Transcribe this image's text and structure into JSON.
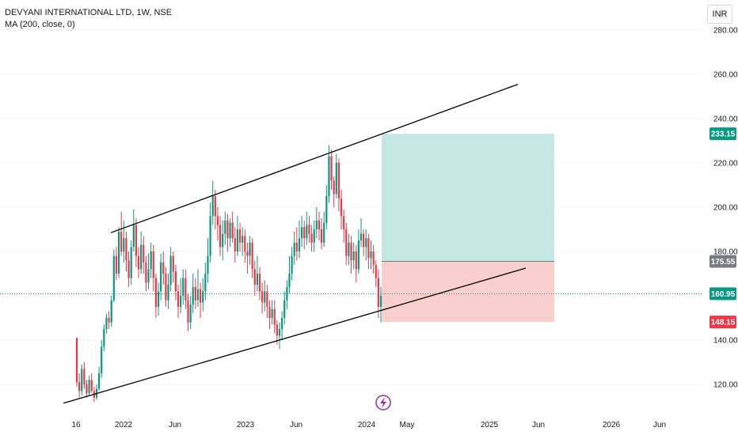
{
  "header": {
    "symbol_line": "DEVYANI INTERNATIONAL LTD, 1W, NSE",
    "indicator_line": "MA (200, close, 0)",
    "currency": "INR"
  },
  "colors": {
    "up": "#089981",
    "down": "#f23645",
    "target_zone": "#b2dfdb",
    "stop_zone": "#f8c7c5",
    "target_label": "#089981",
    "entry_label": "#787b86",
    "last_price_label": "#089981",
    "stop_label": "#f23645",
    "trendline": "#000000",
    "event_icon": "#9c27b0"
  },
  "event_icon": "lightning-icon",
  "chart_data": {
    "type": "candlestick",
    "y_ticks": [
      "280.00",
      "260.00",
      "240.00",
      "220.00",
      "200.00",
      "180.00",
      "140.00",
      "120.00"
    ],
    "x_ticks": [
      "16",
      "2022",
      "Jun",
      "2023",
      "Jun",
      "2024",
      "May",
      "2025",
      "Jun",
      "2026",
      "Jun"
    ],
    "ylim": [
      114,
      284
    ],
    "price_labels": [
      {
        "name": "target",
        "value": "233.15"
      },
      {
        "name": "entry",
        "value": "175.55"
      },
      {
        "name": "last-price",
        "value": "160.95"
      },
      {
        "name": "stop",
        "value": "148.15"
      }
    ],
    "long_position": {
      "entry": 175.55,
      "target": 233.15,
      "stop": 148.15
    },
    "channel": {
      "upper": [
        [
          188.5,
          1
        ],
        [
          255,
          0
        ]
      ],
      "lower": [
        [
          110,
          0
        ],
        [
          172,
          0
        ]
      ]
    },
    "candles": [
      [
        141,
        121,
        141,
        119
      ],
      [
        121,
        117,
        125,
        114
      ],
      [
        117,
        127,
        129,
        115
      ],
      [
        127,
        120,
        130,
        118
      ],
      [
        120,
        116,
        122,
        114
      ],
      [
        116,
        122,
        124,
        115
      ],
      [
        122,
        117,
        125,
        116
      ],
      [
        117,
        114,
        119,
        112
      ],
      [
        114,
        118,
        120,
        113
      ],
      [
        118,
        125,
        128,
        117
      ],
      [
        125,
        137,
        140,
        123
      ],
      [
        137,
        145,
        147,
        135
      ],
      [
        145,
        150,
        152,
        143
      ],
      [
        150,
        148,
        153,
        145
      ],
      [
        148,
        158,
        160,
        146
      ],
      [
        158,
        178,
        181,
        157
      ],
      [
        178,
        170,
        182,
        167
      ],
      [
        170,
        189,
        191,
        168
      ],
      [
        189,
        180,
        198,
        178
      ],
      [
        180,
        186,
        194,
        175
      ],
      [
        186,
        176,
        189,
        171
      ],
      [
        176,
        168,
        180,
        164
      ],
      [
        168,
        182,
        185,
        165
      ],
      [
        182,
        192,
        199,
        180
      ],
      [
        192,
        178,
        195,
        173
      ],
      [
        178,
        172,
        182,
        168
      ],
      [
        172,
        183,
        189,
        170
      ],
      [
        183,
        175,
        187,
        170
      ],
      [
        175,
        166,
        178,
        162
      ],
      [
        166,
        172,
        179,
        163
      ],
      [
        172,
        180,
        184,
        168
      ],
      [
        180,
        168,
        183,
        162
      ],
      [
        168,
        155,
        170,
        150
      ],
      [
        155,
        162,
        166,
        151
      ],
      [
        162,
        175,
        179,
        158
      ],
      [
        175,
        170,
        180,
        165
      ],
      [
        170,
        158,
        173,
        155
      ],
      [
        158,
        165,
        170,
        154
      ],
      [
        165,
        178,
        182,
        162
      ],
      [
        178,
        171,
        180,
        166
      ],
      [
        171,
        162,
        174,
        158
      ],
      [
        162,
        155,
        165,
        150
      ],
      [
        155,
        160,
        168,
        152
      ],
      [
        160,
        168,
        172,
        156
      ],
      [
        168,
        158,
        172,
        154
      ],
      [
        158,
        148,
        161,
        144
      ],
      [
        148,
        156,
        160,
        145
      ],
      [
        156,
        164,
        170,
        152
      ],
      [
        164,
        158,
        168,
        154
      ],
      [
        158,
        163,
        172,
        155
      ],
      [
        163,
        157,
        166,
        150
      ],
      [
        157,
        162,
        168,
        153
      ],
      [
        162,
        170,
        175,
        158
      ],
      [
        170,
        178,
        186,
        166
      ],
      [
        178,
        196,
        202,
        175
      ],
      [
        196,
        205,
        212,
        192
      ],
      [
        205,
        196,
        208,
        190
      ],
      [
        196,
        192,
        200,
        185
      ],
      [
        192,
        182,
        196,
        178
      ],
      [
        182,
        188,
        194,
        176
      ],
      [
        188,
        194,
        198,
        183
      ],
      [
        194,
        186,
        197,
        180
      ],
      [
        186,
        193,
        195,
        182
      ],
      [
        193,
        186,
        198,
        184
      ],
      [
        186,
        180,
        191,
        175
      ],
      [
        180,
        190,
        196,
        178
      ],
      [
        190,
        184,
        193,
        180
      ],
      [
        184,
        187,
        191,
        178
      ],
      [
        187,
        180,
        190,
        175
      ],
      [
        180,
        178,
        184,
        170
      ],
      [
        178,
        184,
        187,
        174
      ],
      [
        184,
        172,
        186,
        168
      ],
      [
        172,
        165,
        176,
        160
      ],
      [
        165,
        170,
        178,
        162
      ],
      [
        170,
        162,
        173,
        158
      ],
      [
        162,
        157,
        166,
        152
      ],
      [
        157,
        162,
        167,
        153
      ],
      [
        162,
        155,
        165,
        150
      ],
      [
        155,
        150,
        158,
        145
      ],
      [
        150,
        154,
        158,
        147
      ],
      [
        154,
        147,
        158,
        143
      ],
      [
        147,
        142,
        149,
        138
      ],
      [
        142,
        145,
        148,
        136
      ],
      [
        145,
        150,
        153,
        140
      ],
      [
        150,
        158,
        162,
        147
      ],
      [
        158,
        164,
        167,
        154
      ],
      [
        164,
        170,
        178,
        161
      ],
      [
        170,
        178,
        182,
        167
      ],
      [
        178,
        184,
        189,
        174
      ],
      [
        184,
        180,
        191,
        176
      ],
      [
        180,
        186,
        194,
        177
      ],
      [
        186,
        191,
        196,
        182
      ],
      [
        191,
        186,
        194,
        181
      ],
      [
        186,
        192,
        198,
        183
      ],
      [
        192,
        188,
        196,
        184
      ],
      [
        188,
        184,
        192,
        180
      ],
      [
        184,
        190,
        194,
        180
      ],
      [
        190,
        194,
        200,
        186
      ],
      [
        194,
        190,
        198,
        185
      ],
      [
        190,
        184,
        195,
        181
      ],
      [
        184,
        193,
        198,
        182
      ],
      [
        193,
        205,
        210,
        190
      ],
      [
        205,
        223,
        228,
        202
      ],
      [
        223,
        212,
        226,
        208
      ],
      [
        212,
        206,
        214,
        200
      ],
      [
        206,
        220,
        224,
        204
      ],
      [
        220,
        204,
        222,
        198
      ],
      [
        204,
        196,
        208,
        190
      ],
      [
        196,
        190,
        199,
        184
      ],
      [
        190,
        178,
        193,
        174
      ],
      [
        178,
        184,
        188,
        174
      ],
      [
        184,
        176,
        187,
        170
      ],
      [
        176,
        180,
        184,
        172
      ],
      [
        180,
        172,
        183,
        166
      ],
      [
        172,
        185,
        190,
        170
      ],
      [
        185,
        188,
        195,
        182
      ],
      [
        188,
        182,
        190,
        178
      ],
      [
        182,
        186,
        190,
        176
      ],
      [
        186,
        177,
        188,
        172
      ],
      [
        177,
        180,
        185,
        172
      ],
      [
        180,
        174,
        183,
        170
      ],
      [
        174,
        168,
        176,
        164
      ],
      [
        168,
        155,
        172,
        150
      ],
      [
        155,
        160,
        164,
        148
      ]
    ]
  }
}
